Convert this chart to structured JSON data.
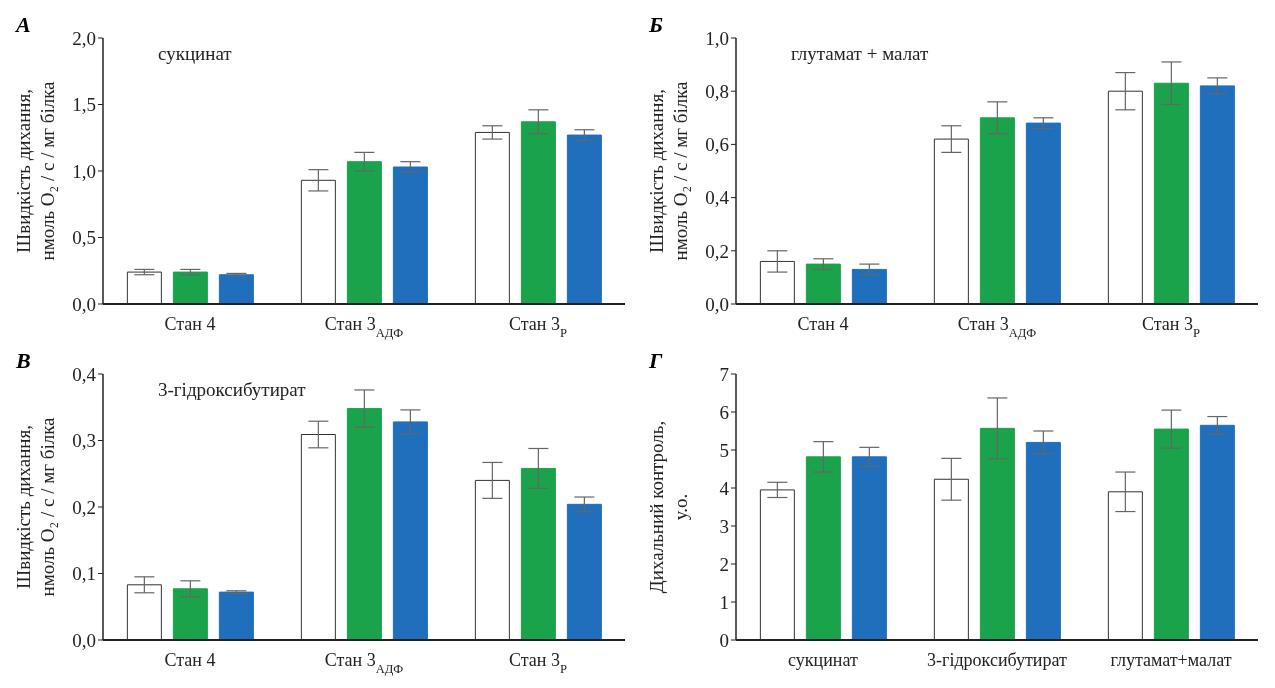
{
  "chart_data": [
    {
      "type": "bar",
      "title": "А",
      "annotations": [
        "сукцинат"
      ],
      "ylabel": "Швидкість дихання,\nнмоль O₂ / с / мг білка",
      "categories": [
        "Стан 4",
        "Стан 3$_{АДФ}$",
        "Стан 3$_{Р}$"
      ],
      "ylim": [
        0,
        2
      ],
      "yticks": [
        {
          "value": 0,
          "label": "0,0"
        },
        {
          "value": 0.5,
          "label": "0,5"
        },
        {
          "value": 1,
          "label": "1,0"
        },
        {
          "value": 1.5,
          "label": "1,5"
        },
        {
          "value": 2,
          "label": "2,0"
        }
      ],
      "grid": false,
      "legend": false,
      "series": [
        {
          "color": "#ffffff",
          "values": [
            0.24,
            0.93,
            1.29
          ],
          "errors": [
            0.02,
            0.08,
            0.05
          ]
        },
        {
          "color": "#1aa34a",
          "values": [
            0.24,
            1.07,
            1.37
          ],
          "errors": [
            0.02,
            0.07,
            0.09
          ]
        },
        {
          "color": "#1f6fbd",
          "values": [
            0.22,
            1.03,
            1.27
          ],
          "errors": [
            0.01,
            0.04,
            0.04
          ]
        }
      ]
    },
    {
      "type": "bar",
      "title": "Б",
      "annotations": [
        "глутамат + малат"
      ],
      "ylabel": "Швидкість дихання,\nнмоль O₂ / с / мг білка",
      "categories": [
        "Стан 4",
        "Стан 3$_{АДФ}$",
        "Стан 3$_{Р}$"
      ],
      "ylim": [
        0,
        1
      ],
      "yticks": [
        {
          "value": 0,
          "label": "0,0"
        },
        {
          "value": 0.2,
          "label": "0,2"
        },
        {
          "value": 0.4,
          "label": "0,4"
        },
        {
          "value": 0.6,
          "label": "0,6"
        },
        {
          "value": 0.8,
          "label": "0,8"
        },
        {
          "value": 1,
          "label": "1,0"
        }
      ],
      "grid": false,
      "legend": false,
      "series": [
        {
          "color": "#ffffff",
          "values": [
            0.16,
            0.62,
            0.8
          ],
          "errors": [
            0.04,
            0.05,
            0.07
          ]
        },
        {
          "color": "#1aa34a",
          "values": [
            0.15,
            0.7,
            0.83
          ],
          "errors": [
            0.02,
            0.06,
            0.08
          ]
        },
        {
          "color": "#1f6fbd",
          "values": [
            0.13,
            0.68,
            0.82
          ],
          "errors": [
            0.02,
            0.02,
            0.03
          ]
        }
      ]
    },
    {
      "type": "bar",
      "title": "В",
      "annotations": [
        "3-гідроксибутират"
      ],
      "ylabel": "Швидкість дихання,\nнмоль O₂ / с / мг білка",
      "categories": [
        "Стан 4",
        "Стан 3$_{АДФ}$",
        "Стан 3$_{Р}$"
      ],
      "ylim": [
        0,
        0.4
      ],
      "yticks": [
        {
          "value": 0,
          "label": "0,0"
        },
        {
          "value": 0.1,
          "label": "0,1"
        },
        {
          "value": 0.2,
          "label": "0,2"
        },
        {
          "value": 0.3,
          "label": "0,3"
        },
        {
          "value": 0.4,
          "label": "0,4"
        }
      ],
      "grid": false,
      "legend": false,
      "series": [
        {
          "color": "#ffffff",
          "values": [
            0.083,
            0.309,
            0.24
          ],
          "errors": [
            0.012,
            0.02,
            0.027
          ]
        },
        {
          "color": "#1aa34a",
          "values": [
            0.077,
            0.348,
            0.258
          ],
          "errors": [
            0.012,
            0.028,
            0.03
          ]
        },
        {
          "color": "#1f6fbd",
          "values": [
            0.072,
            0.328,
            0.204
          ],
          "errors": [
            0.002,
            0.018,
            0.011
          ]
        }
      ]
    },
    {
      "type": "bar",
      "title": "Г",
      "ylabel": "Дихальний контроль,\nу.о.",
      "categories": [
        "сукцинат",
        "3-гідроксибутират",
        "глутамат+малат"
      ],
      "ylim": [
        0,
        7
      ],
      "yticks": [
        0,
        1,
        2,
        3,
        4,
        5,
        6,
        7
      ],
      "grid": false,
      "legend": false,
      "series": [
        {
          "color": "#ffffff",
          "values": [
            3.95,
            4.23,
            3.9
          ],
          "errors": [
            0.2,
            0.55,
            0.52
          ]
        },
        {
          "color": "#1aa34a",
          "values": [
            4.82,
            5.57,
            5.55
          ],
          "errors": [
            0.4,
            0.8,
            0.5
          ]
        },
        {
          "color": "#1f6fbd",
          "values": [
            4.82,
            5.2,
            5.65
          ],
          "errors": [
            0.25,
            0.3,
            0.23
          ]
        }
      ]
    }
  ]
}
